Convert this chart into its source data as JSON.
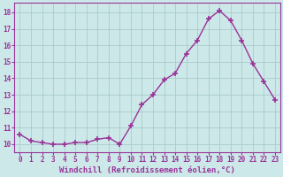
{
  "x": [
    0,
    1,
    2,
    3,
    4,
    5,
    6,
    7,
    8,
    9,
    10,
    11,
    12,
    13,
    14,
    15,
    16,
    17,
    18,
    19,
    20,
    21,
    22,
    23
  ],
  "y": [
    10.6,
    10.2,
    10.1,
    10.0,
    10.0,
    10.1,
    10.1,
    10.3,
    10.4,
    10.0,
    11.1,
    12.4,
    13.0,
    13.9,
    14.3,
    15.5,
    16.3,
    17.6,
    18.1,
    17.5,
    16.3,
    14.9,
    13.8,
    12.7
  ],
  "line_color": "#993399",
  "marker": "+",
  "marker_size": 4,
  "marker_lw": 1.2,
  "bg_color": "#cce8e8",
  "grid_color": "#aacccc",
  "xlabel": "Windchill (Refroidissement éolien,°C)",
  "xlabel_color": "#993399",
  "ylim": [
    9.5,
    18.6
  ],
  "yticks": [
    10,
    11,
    12,
    13,
    14,
    15,
    16,
    17,
    18
  ],
  "xticks": [
    0,
    1,
    2,
    3,
    4,
    5,
    6,
    7,
    8,
    9,
    10,
    11,
    12,
    13,
    14,
    15,
    16,
    17,
    18,
    19,
    20,
    21,
    22,
    23
  ],
  "tick_color": "#993399",
  "tick_fontsize": 5.5,
  "xlabel_fontsize": 6.5,
  "line_width": 1.0
}
